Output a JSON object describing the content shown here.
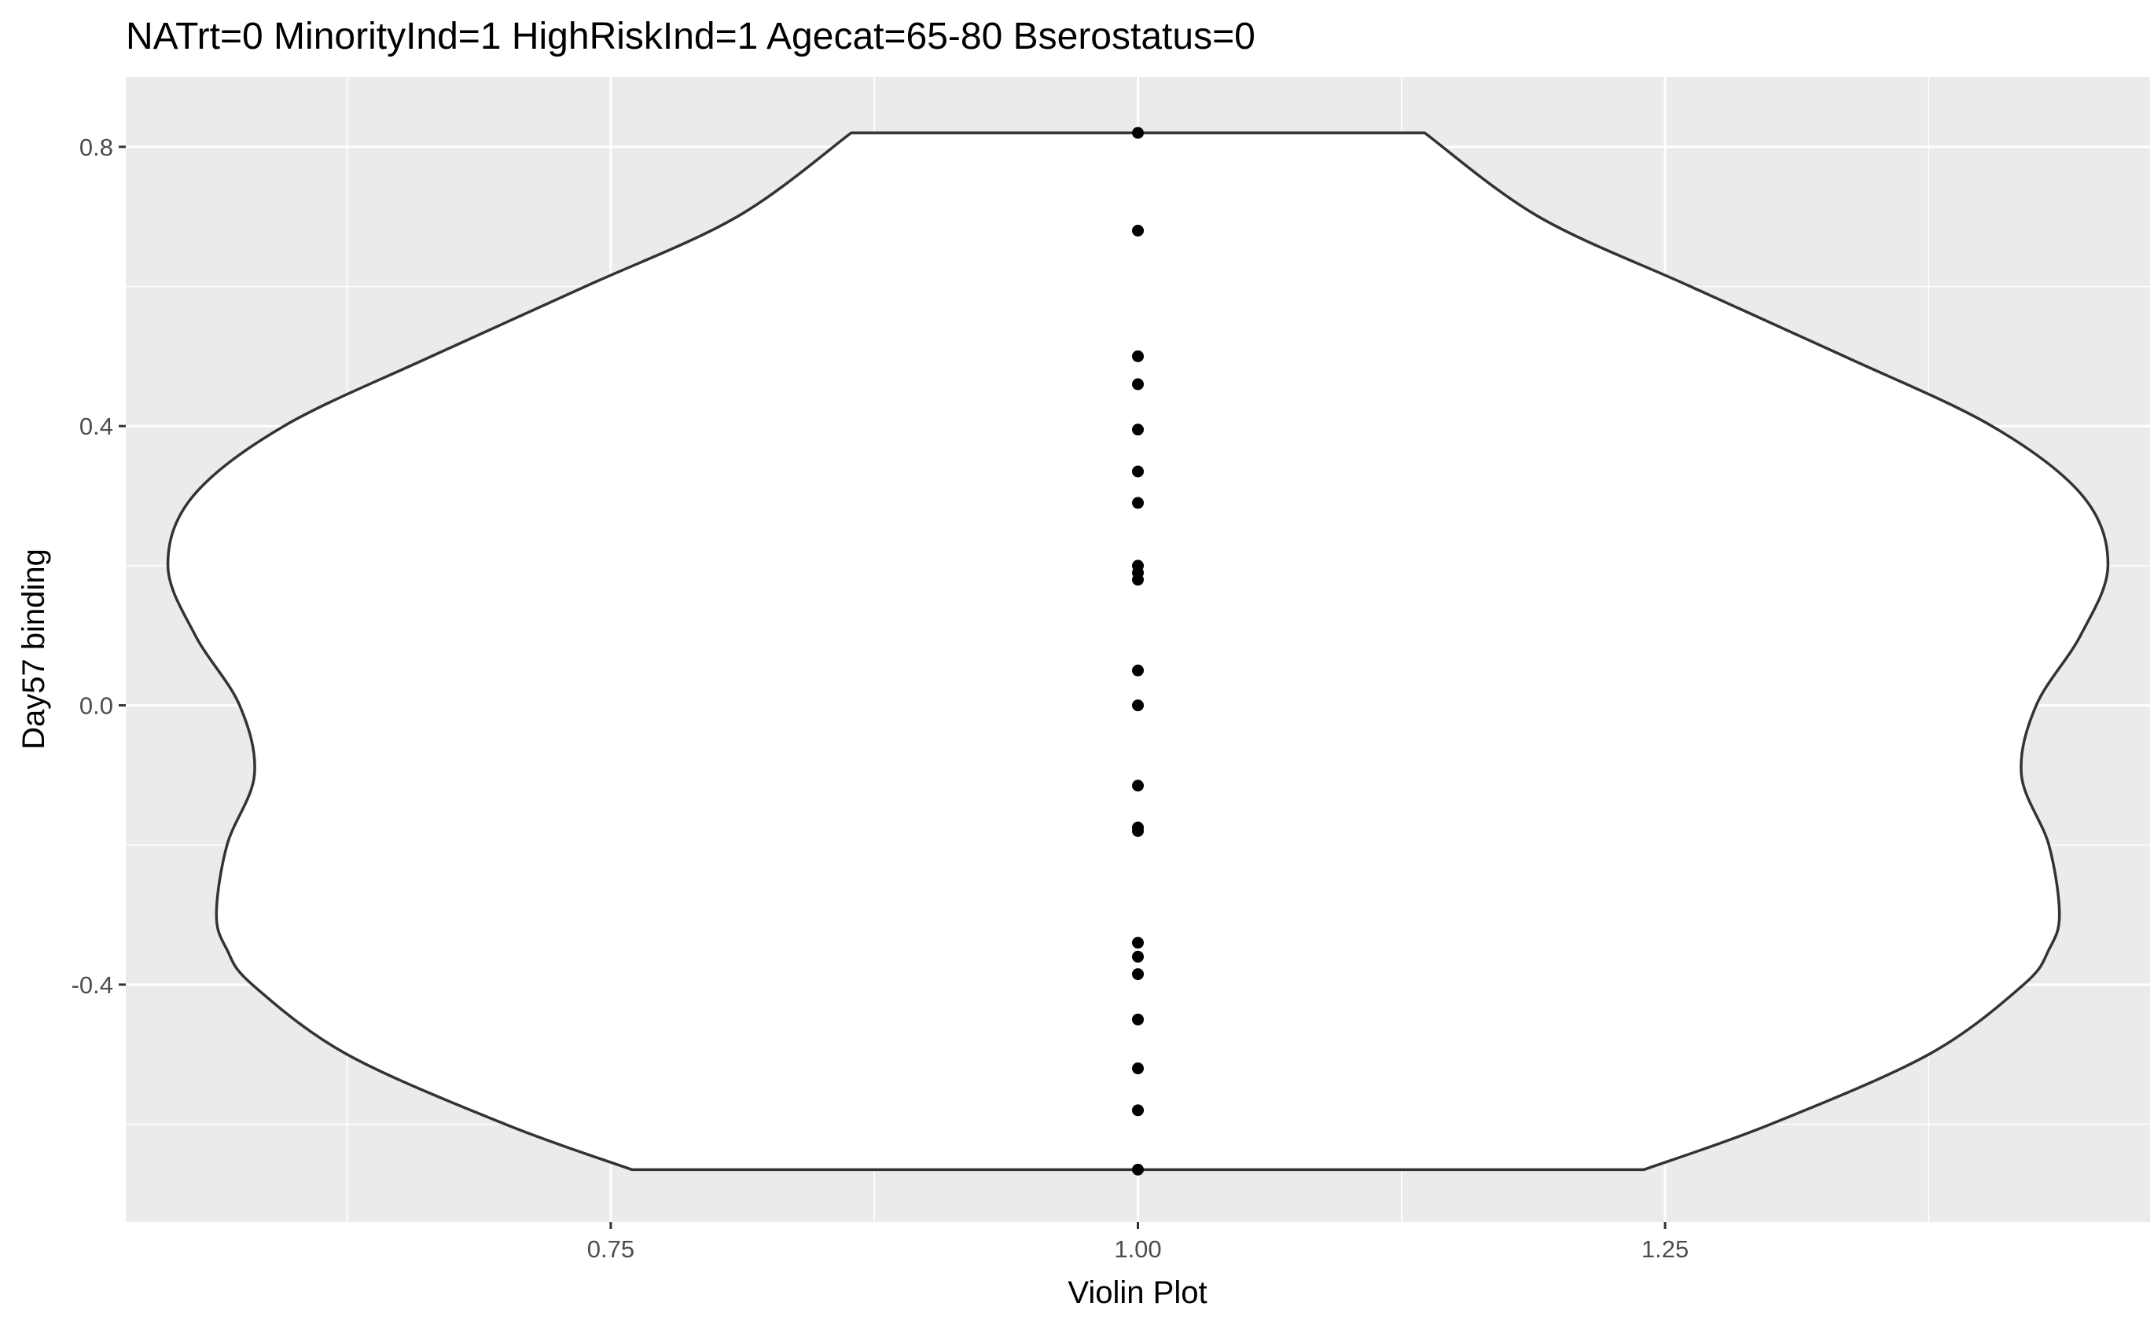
{
  "chart_data": {
    "type": "violin",
    "title": "NATrt=0 MinorityInd=1 HighRiskInd=1 Agecat=65-80 Bserostatus=0",
    "xlabel": "Violin Plot",
    "ylabel": "Day57 binding",
    "xlim": [
      0.52,
      1.48
    ],
    "ylim": [
      -0.74,
      0.9
    ],
    "x_ticks": [
      {
        "value": 0.75,
        "label": "0.75"
      },
      {
        "value": 1.0,
        "label": "1.00"
      },
      {
        "value": 1.25,
        "label": "1.25"
      }
    ],
    "y_ticks": [
      {
        "value": -0.4,
        "label": "-0.4"
      },
      {
        "value": 0.0,
        "label": "0.0"
      },
      {
        "value": 0.4,
        "label": "0.4"
      },
      {
        "value": 0.8,
        "label": "0.8"
      }
    ],
    "grid": true,
    "violin": {
      "x_center": 1.0,
      "profile": [
        {
          "y": -0.665,
          "half_width": 0.24
        },
        {
          "y": -0.6,
          "half_width": 0.3
        },
        {
          "y": -0.5,
          "half_width": 0.375
        },
        {
          "y": -0.4,
          "half_width": 0.42
        },
        {
          "y": -0.35,
          "half_width": 0.432
        },
        {
          "y": -0.3,
          "half_width": 0.437
        },
        {
          "y": -0.2,
          "half_width": 0.432
        },
        {
          "y": -0.1,
          "half_width": 0.419
        },
        {
          "y": 0.0,
          "half_width": 0.426
        },
        {
          "y": 0.1,
          "half_width": 0.447
        },
        {
          "y": 0.2,
          "half_width": 0.46
        },
        {
          "y": 0.3,
          "half_width": 0.448
        },
        {
          "y": 0.4,
          "half_width": 0.405
        },
        {
          "y": 0.5,
          "half_width": 0.335
        },
        {
          "y": 0.6,
          "half_width": 0.262
        },
        {
          "y": 0.7,
          "half_width": 0.19
        },
        {
          "y": 0.82,
          "half_width": 0.136
        }
      ]
    },
    "points_x": 1.0,
    "points_y": [
      0.82,
      0.68,
      0.5,
      0.46,
      0.395,
      0.335,
      0.29,
      0.2,
      0.19,
      0.18,
      0.05,
      0.0,
      -0.115,
      -0.175,
      -0.18,
      -0.34,
      -0.36,
      -0.385,
      -0.45,
      -0.52,
      -0.58,
      -0.665
    ]
  }
}
